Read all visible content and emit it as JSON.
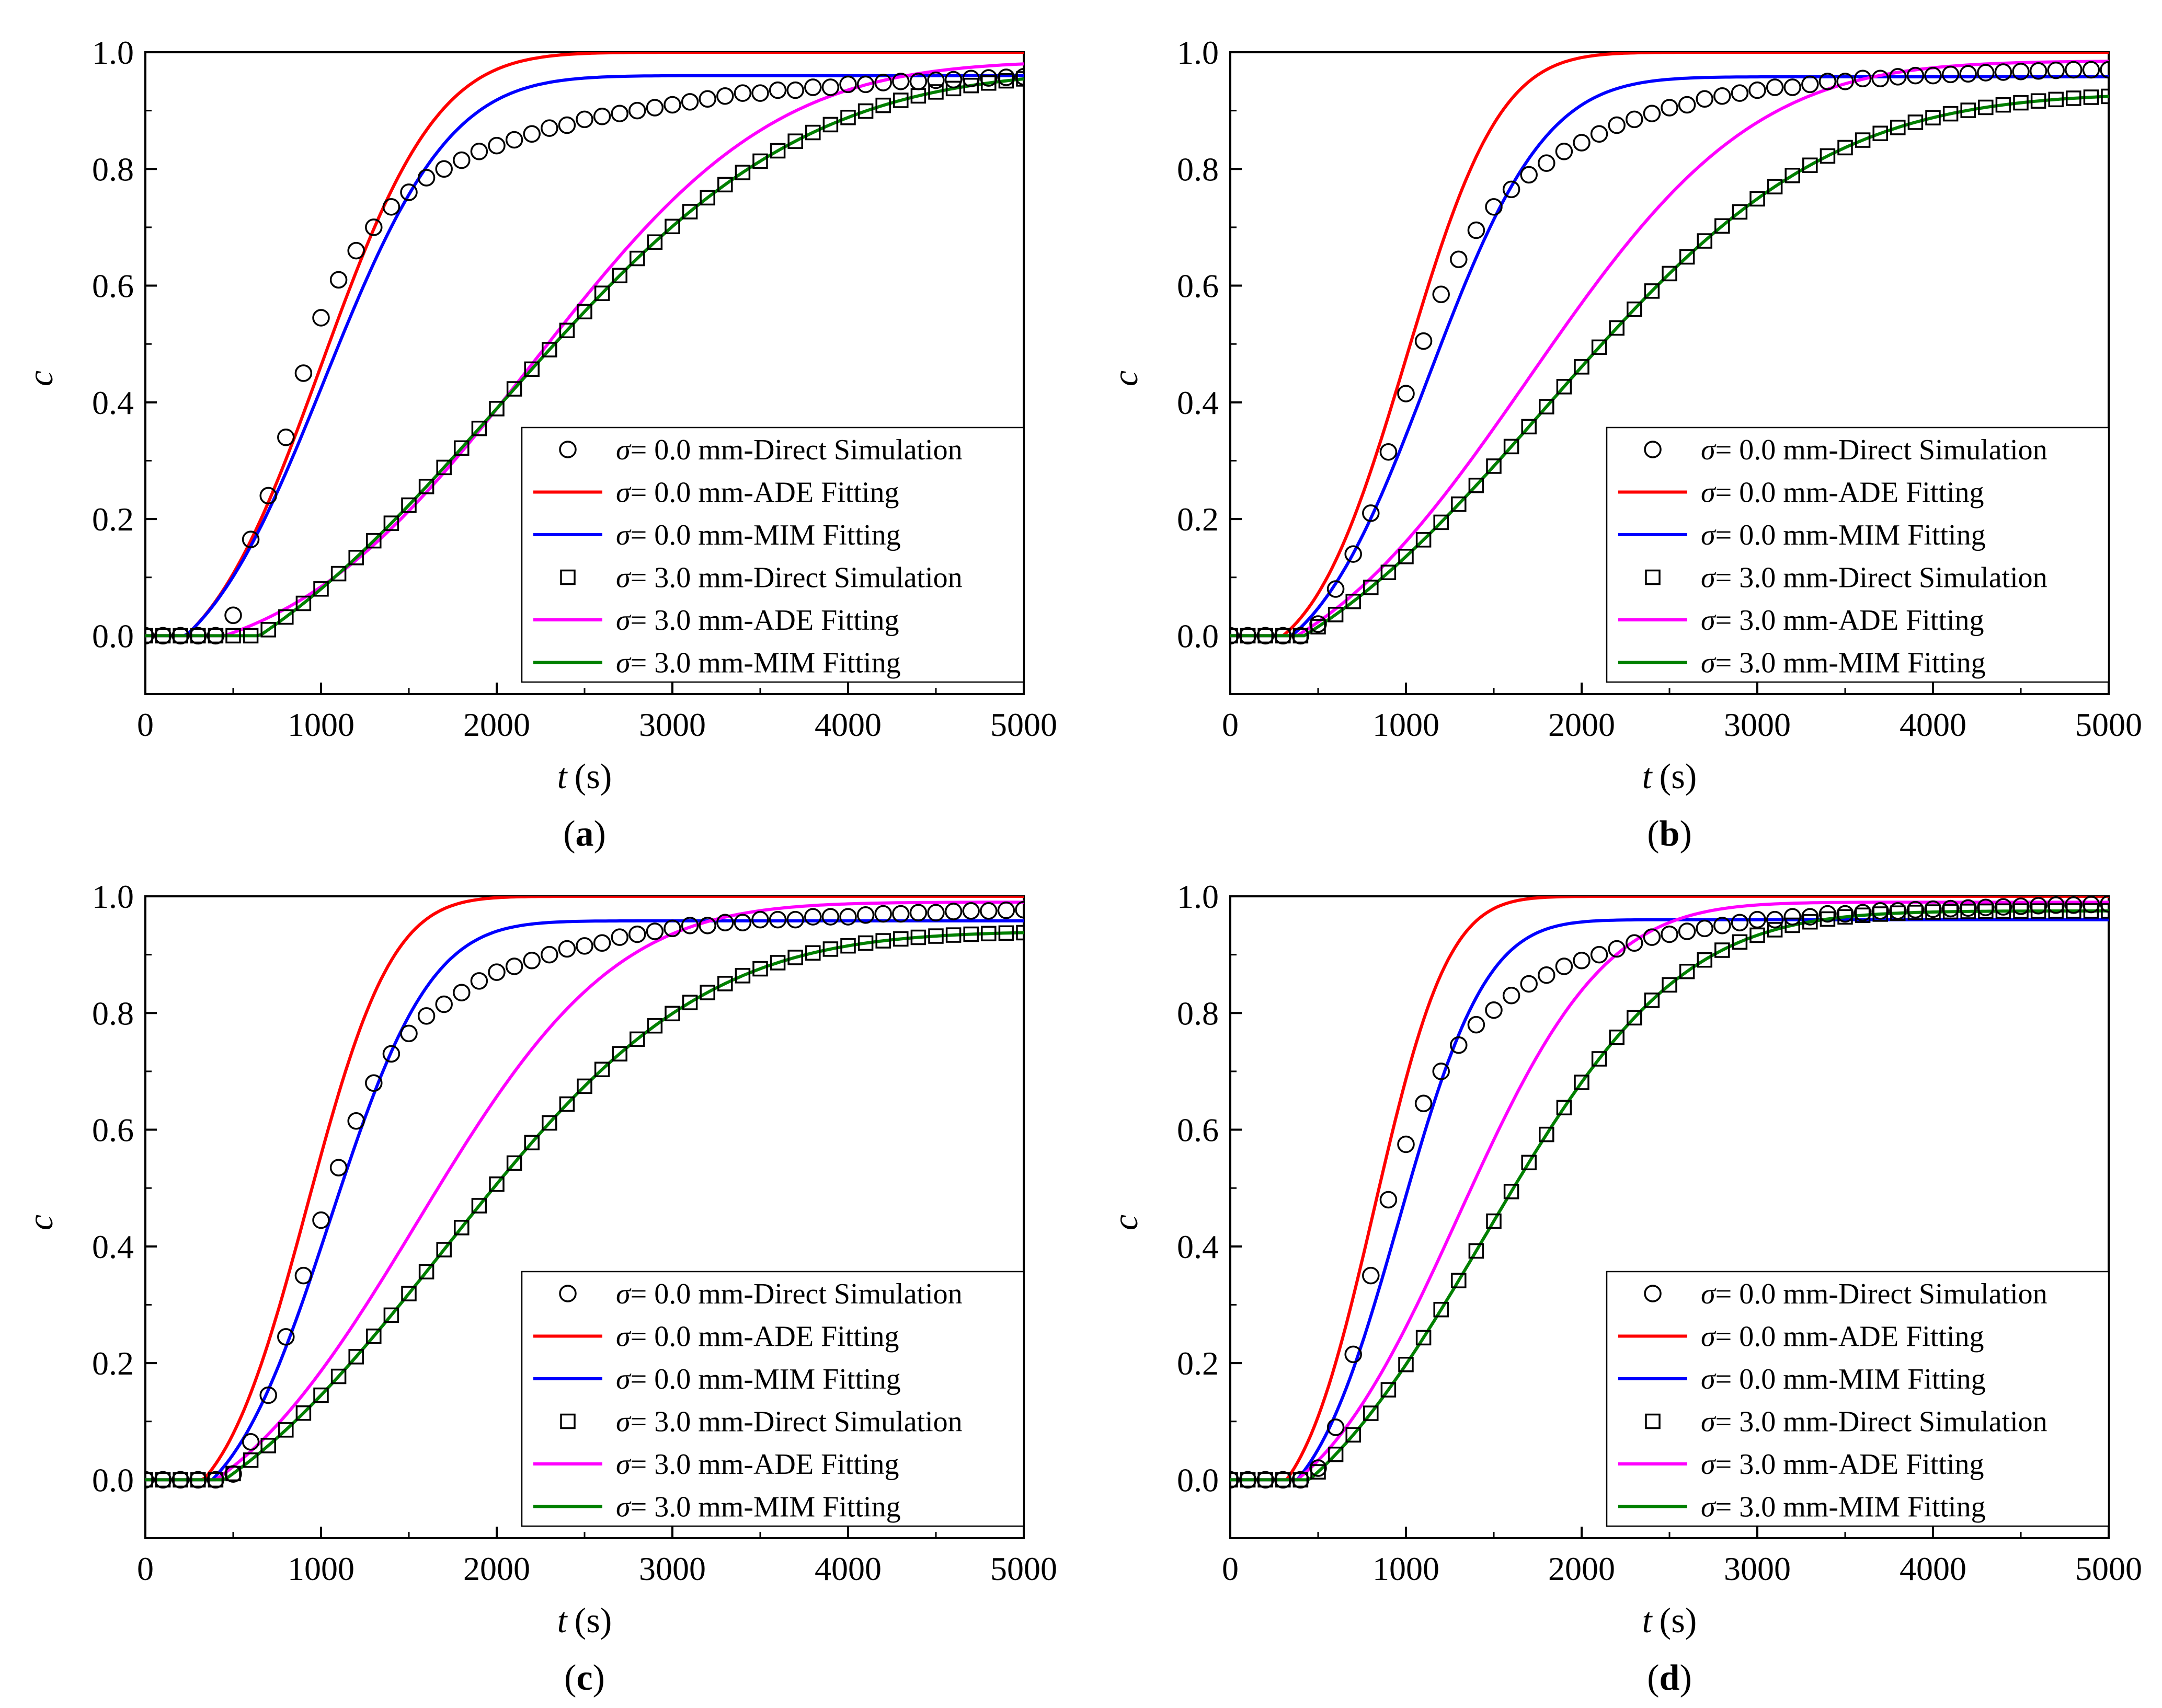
{
  "chart_data": [
    {
      "type": "line",
      "panel": "a",
      "caption": "a",
      "xlabel": "t",
      "xunit": "(s)",
      "ylabel": "c",
      "xlim": [
        0,
        5000
      ],
      "ylim": [
        -0.1,
        1.0
      ],
      "xticks": [
        0,
        1000,
        2000,
        3000,
        4000,
        5000
      ],
      "yticks": [
        0.0,
        0.2,
        0.4,
        0.6,
        0.8,
        1.0
      ],
      "xtick_labels": [
        "0",
        "1000",
        "2000",
        "3000",
        "4000",
        "5000"
      ],
      "ytick_labels": [
        "0.0",
        "0.2",
        "0.4",
        "0.6",
        "0.8",
        "1.0"
      ],
      "legend_position": "bottom-right",
      "series": [
        {
          "name": "σ= 0.0 mm-Direct Simulation",
          "label_symbol": "σ",
          "label_text": "= 0.0 mm-Direct Simulation",
          "kind": "marker",
          "marker": "circle",
          "color": "#000000",
          "x": [
            0,
            100,
            200,
            300,
            400,
            500,
            600,
            700,
            800,
            900,
            1000,
            1100,
            1200,
            1300,
            1400,
            1500,
            1600,
            1700,
            1800,
            1900,
            2000,
            2100,
            2200,
            2300,
            2400,
            2500,
            2600,
            2700,
            2800,
            2900,
            3000,
            3100,
            3200,
            3300,
            3400,
            3500,
            3600,
            3700,
            3800,
            3900,
            4000,
            4100,
            4200,
            4300,
            4400,
            4500,
            4600,
            4700,
            4800,
            4900,
            5000
          ],
          "y": [
            0,
            0,
            0,
            0,
            0,
            0.035,
            0.165,
            0.24,
            0.34,
            0.45,
            0.545,
            0.61,
            0.66,
            0.7,
            0.735,
            0.76,
            0.785,
            0.8,
            0.815,
            0.83,
            0.84,
            0.85,
            0.86,
            0.87,
            0.875,
            0.885,
            0.89,
            0.895,
            0.9,
            0.905,
            0.91,
            0.915,
            0.92,
            0.925,
            0.93,
            0.93,
            0.935,
            0.935,
            0.94,
            0.94,
            0.945,
            0.945,
            0.948,
            0.95,
            0.95,
            0.952,
            0.953,
            0.955,
            0.956,
            0.957,
            0.958
          ]
        },
        {
          "name": "σ= 0.0 mm-ADE Fitting",
          "label_symbol": "σ",
          "label_text": "= 0.0 mm-ADE Fitting",
          "kind": "line",
          "color": "#ff0000",
          "model": {
            "mean": 1000,
            "sd": 520,
            "start": 230,
            "max": 1.0
          }
        },
        {
          "name": "σ= 0.0 mm-MIM Fitting",
          "label_symbol": "σ",
          "label_text": "= 0.0 mm-MIM Fitting",
          "kind": "line",
          "color": "#0000ff",
          "model": {
            "mean": 1020,
            "sd": 560,
            "start": 230,
            "max": 0.96
          }
        },
        {
          "name": "σ= 3.0 mm-Direct Simulation",
          "label_symbol": "σ",
          "label_text": "= 3.0 mm-Direct Simulation",
          "kind": "marker",
          "marker": "square",
          "color": "#000000",
          "model": {
            "mean": 2020,
            "sd": 1350,
            "start": 650,
            "max": 0.97
          }
        },
        {
          "name": "σ= 3.0 mm-ADE Fitting",
          "label_symbol": "σ",
          "label_text": "= 3.0 mm-ADE Fitting",
          "kind": "line",
          "color": "#ff00ff",
          "model": {
            "mean": 2200,
            "sd": 1080,
            "start": 450,
            "max": 0.985
          }
        },
        {
          "name": "σ= 3.0 mm-MIM Fitting",
          "label_symbol": "σ",
          "label_text": "= 3.0 mm-MIM Fitting",
          "kind": "line",
          "color": "#008000",
          "model": {
            "mean": 2020,
            "sd": 1350,
            "start": 650,
            "max": 0.97
          }
        }
      ]
    },
    {
      "type": "line",
      "panel": "b",
      "caption": "b",
      "xlabel": "t",
      "xunit": "(s)",
      "ylabel": "c",
      "xlim": [
        0,
        5000
      ],
      "ylim": [
        -0.1,
        1.0
      ],
      "xticks": [
        0,
        1000,
        2000,
        3000,
        4000,
        5000
      ],
      "yticks": [
        0.0,
        0.2,
        0.4,
        0.6,
        0.8,
        1.0
      ],
      "xtick_labels": [
        "0",
        "1000",
        "2000",
        "3000",
        "4000",
        "5000"
      ],
      "ytick_labels": [
        "0.0",
        "0.2",
        "0.4",
        "0.6",
        "0.8",
        "1.0"
      ],
      "legend_position": "bottom-right",
      "series": [
        {
          "name": "σ= 0.0 mm-Direct Simulation",
          "label_symbol": "σ",
          "label_text": "= 0.0 mm-Direct Simulation",
          "kind": "marker",
          "marker": "circle",
          "color": "#000000",
          "x": [
            0,
            100,
            200,
            300,
            400,
            500,
            600,
            700,
            800,
            900,
            1000,
            1100,
            1200,
            1300,
            1400,
            1500,
            1600,
            1700,
            1800,
            1900,
            2000,
            2100,
            2200,
            2300,
            2400,
            2500,
            2600,
            2700,
            2800,
            2900,
            3000,
            3100,
            3200,
            3300,
            3400,
            3500,
            3600,
            3700,
            3800,
            3900,
            4000,
            4100,
            4200,
            4300,
            4400,
            4500,
            4600,
            4700,
            4800,
            4900,
            5000
          ],
          "y": [
            0,
            0,
            0,
            0,
            0,
            0.02,
            0.08,
            0.14,
            0.21,
            0.315,
            0.415,
            0.505,
            0.585,
            0.645,
            0.695,
            0.735,
            0.765,
            0.79,
            0.81,
            0.83,
            0.845,
            0.86,
            0.875,
            0.885,
            0.895,
            0.905,
            0.91,
            0.92,
            0.925,
            0.93,
            0.935,
            0.94,
            0.94,
            0.945,
            0.95,
            0.95,
            0.955,
            0.955,
            0.958,
            0.96,
            0.96,
            0.962,
            0.963,
            0.965,
            0.966,
            0.967,
            0.968,
            0.969,
            0.97,
            0.97,
            0.97
          ]
        },
        {
          "name": "σ= 0.0 mm-ADE Fitting",
          "label_symbol": "σ",
          "label_text": "= 0.0 mm-ADE Fitting",
          "kind": "line",
          "color": "#ff0000",
          "model": {
            "mean": 1000,
            "sd": 420,
            "start": 300,
            "max": 1.0
          }
        },
        {
          "name": "σ= 0.0 mm-MIM Fitting",
          "label_symbol": "σ",
          "label_text": "= 0.0 mm-MIM Fitting",
          "kind": "line",
          "color": "#0000ff",
          "model": {
            "mean": 1130,
            "sd": 520,
            "start": 350,
            "max": 0.958
          }
        },
        {
          "name": "σ= 3.0 mm-Direct Simulation",
          "label_symbol": "σ",
          "label_text": "= 3.0 mm-Direct Simulation",
          "kind": "marker",
          "marker": "square",
          "color": "#000000",
          "model": {
            "mean": 1800,
            "sd": 1250,
            "start": 420,
            "max": 0.93
          }
        },
        {
          "name": "σ= 3.0 mm-ADE Fitting",
          "label_symbol": "σ",
          "label_text": "= 3.0 mm-ADE Fitting",
          "kind": "line",
          "color": "#ff00ff",
          "model": {
            "mean": 1700,
            "sd": 1000,
            "start": 380,
            "max": 0.985
          }
        },
        {
          "name": "σ= 3.0 mm-MIM Fitting",
          "label_symbol": "σ",
          "label_text": "= 3.0 mm-MIM Fitting",
          "kind": "line",
          "color": "#008000",
          "model": {
            "mean": 1800,
            "sd": 1250,
            "start": 420,
            "max": 0.93
          }
        }
      ]
    },
    {
      "type": "line",
      "panel": "c",
      "caption": "c",
      "xlabel": "t",
      "xunit": "(s)",
      "ylabel": "c",
      "xlim": [
        0,
        5000
      ],
      "ylim": [
        -0.1,
        1.0
      ],
      "xticks": [
        0,
        1000,
        2000,
        3000,
        4000,
        5000
      ],
      "yticks": [
        0.0,
        0.2,
        0.4,
        0.6,
        0.8,
        1.0
      ],
      "xtick_labels": [
        "0",
        "1000",
        "2000",
        "3000",
        "4000",
        "5000"
      ],
      "ytick_labels": [
        "0.0",
        "0.2",
        "0.4",
        "0.6",
        "0.8",
        "1.0"
      ],
      "legend_position": "bottom-right",
      "series": [
        {
          "name": "σ= 0.0 mm-Direct Simulation",
          "label_symbol": "σ",
          "label_text": "= 0.0 mm-Direct Simulation",
          "kind": "marker",
          "marker": "circle",
          "color": "#000000",
          "x": [
            0,
            100,
            200,
            300,
            400,
            500,
            600,
            700,
            800,
            900,
            1000,
            1100,
            1200,
            1300,
            1400,
            1500,
            1600,
            1700,
            1800,
            1900,
            2000,
            2100,
            2200,
            2300,
            2400,
            2500,
            2600,
            2700,
            2800,
            2900,
            3000,
            3100,
            3200,
            3300,
            3400,
            3500,
            3600,
            3700,
            3800,
            3900,
            4000,
            4100,
            4200,
            4300,
            4400,
            4500,
            4600,
            4700,
            4800,
            4900,
            5000
          ],
          "y": [
            0,
            0,
            0,
            0,
            0,
            0.01,
            0.065,
            0.145,
            0.245,
            0.35,
            0.445,
            0.535,
            0.615,
            0.68,
            0.73,
            0.765,
            0.795,
            0.815,
            0.835,
            0.855,
            0.87,
            0.88,
            0.89,
            0.9,
            0.91,
            0.915,
            0.92,
            0.93,
            0.935,
            0.94,
            0.945,
            0.95,
            0.95,
            0.955,
            0.955,
            0.96,
            0.96,
            0.96,
            0.965,
            0.965,
            0.965,
            0.968,
            0.97,
            0.97,
            0.972,
            0.972,
            0.974,
            0.975,
            0.975,
            0.976,
            0.977
          ]
        },
        {
          "name": "σ= 0.0 mm-ADE Fitting",
          "label_symbol": "σ",
          "label_text": "= 0.0 mm-ADE Fitting",
          "kind": "line",
          "color": "#ff0000",
          "model": {
            "mean": 920,
            "sd": 380,
            "start": 330,
            "max": 1.0
          }
        },
        {
          "name": "σ= 0.0 mm-MIM Fitting",
          "label_symbol": "σ",
          "label_text": "= 0.0 mm-MIM Fitting",
          "kind": "line",
          "color": "#0000ff",
          "model": {
            "mean": 1050,
            "sd": 450,
            "start": 380,
            "max": 0.958
          }
        },
        {
          "name": "σ= 3.0 mm-Direct Simulation",
          "label_symbol": "σ",
          "label_text": "= 3.0 mm-Direct Simulation",
          "kind": "marker",
          "marker": "square",
          "color": "#000000",
          "model": {
            "mean": 1700,
            "sd": 1150,
            "start": 450,
            "max": 0.94
          }
        },
        {
          "name": "σ= 3.0 mm-ADE Fitting",
          "label_symbol": "σ",
          "label_text": "= 3.0 mm-ADE Fitting",
          "kind": "line",
          "color": "#ff00ff",
          "model": {
            "mean": 1550,
            "sd": 880,
            "start": 400,
            "max": 0.99
          }
        },
        {
          "name": "σ= 3.0 mm-MIM Fitting",
          "label_symbol": "σ",
          "label_text": "= 3.0 mm-MIM Fitting",
          "kind": "line",
          "color": "#008000",
          "model": {
            "mean": 1700,
            "sd": 1150,
            "start": 450,
            "max": 0.94
          }
        }
      ]
    },
    {
      "type": "line",
      "panel": "d",
      "caption": "d",
      "xlabel": "t",
      "xunit": "(s)",
      "ylabel": "c",
      "xlim": [
        0,
        5000
      ],
      "ylim": [
        -0.1,
        1.0
      ],
      "xticks": [
        0,
        1000,
        2000,
        3000,
        4000,
        5000
      ],
      "yticks": [
        0.0,
        0.2,
        0.4,
        0.6,
        0.8,
        1.0
      ],
      "xtick_labels": [
        "0",
        "1000",
        "2000",
        "3000",
        "4000",
        "5000"
      ],
      "ytick_labels": [
        "0.0",
        "0.2",
        "0.4",
        "0.6",
        "0.8",
        "1.0"
      ],
      "legend_position": "bottom-right",
      "series": [
        {
          "name": "σ= 0.0 mm-Direct Simulation",
          "label_symbol": "σ",
          "label_text": "= 0.0 mm-Direct Simulation",
          "kind": "marker",
          "marker": "circle",
          "color": "#000000",
          "x": [
            0,
            100,
            200,
            300,
            400,
            500,
            600,
            700,
            800,
            900,
            1000,
            1100,
            1200,
            1300,
            1400,
            1500,
            1600,
            1700,
            1800,
            1900,
            2000,
            2100,
            2200,
            2300,
            2400,
            2500,
            2600,
            2700,
            2800,
            2900,
            3000,
            3100,
            3200,
            3300,
            3400,
            3500,
            3600,
            3700,
            3800,
            3900,
            4000,
            4100,
            4200,
            4300,
            4400,
            4500,
            4600,
            4700,
            4800,
            4900,
            5000
          ],
          "y": [
            0,
            0,
            0,
            0,
            0,
            0.02,
            0.09,
            0.215,
            0.35,
            0.48,
            0.575,
            0.645,
            0.7,
            0.745,
            0.78,
            0.805,
            0.83,
            0.85,
            0.865,
            0.88,
            0.89,
            0.9,
            0.91,
            0.92,
            0.93,
            0.935,
            0.94,
            0.945,
            0.95,
            0.955,
            0.96,
            0.96,
            0.965,
            0.965,
            0.97,
            0.97,
            0.972,
            0.975,
            0.975,
            0.977,
            0.978,
            0.979,
            0.98,
            0.981,
            0.982,
            0.983,
            0.984,
            0.985,
            0.985,
            0.986,
            0.987
          ]
        },
        {
          "name": "σ= 0.0 mm-ADE Fitting",
          "label_symbol": "σ",
          "label_text": "= 0.0 mm-ADE Fitting",
          "kind": "line",
          "color": "#ff0000",
          "model": {
            "mean": 820,
            "sd": 330,
            "start": 320,
            "max": 1.0
          }
        },
        {
          "name": "σ= 0.0 mm-MIM Fitting",
          "label_symbol": "σ",
          "label_text": "= 0.0 mm-MIM Fitting",
          "kind": "line",
          "color": "#0000ff",
          "model": {
            "mean": 960,
            "sd": 390,
            "start": 380,
            "max": 0.96
          }
        },
        {
          "name": "σ= 3.0 mm-Direct Simulation",
          "label_symbol": "σ",
          "label_text": "= 3.0 mm-Direct Simulation",
          "kind": "marker",
          "marker": "square",
          "color": "#000000",
          "model": {
            "mean": 1450,
            "sd": 870,
            "start": 450,
            "max": 0.975
          }
        },
        {
          "name": "σ= 3.0 mm-ADE Fitting",
          "label_symbol": "σ",
          "label_text": "= 3.0 mm-ADE Fitting",
          "kind": "line",
          "color": "#ff00ff",
          "model": {
            "mean": 1300,
            "sd": 650,
            "start": 380,
            "max": 0.99
          }
        },
        {
          "name": "σ= 3.0 mm-MIM Fitting",
          "label_symbol": "σ",
          "label_text": "= 3.0 mm-MIM Fitting",
          "kind": "line",
          "color": "#008000",
          "model": {
            "mean": 1450,
            "sd": 870,
            "start": 450,
            "max": 0.975
          }
        }
      ]
    }
  ]
}
